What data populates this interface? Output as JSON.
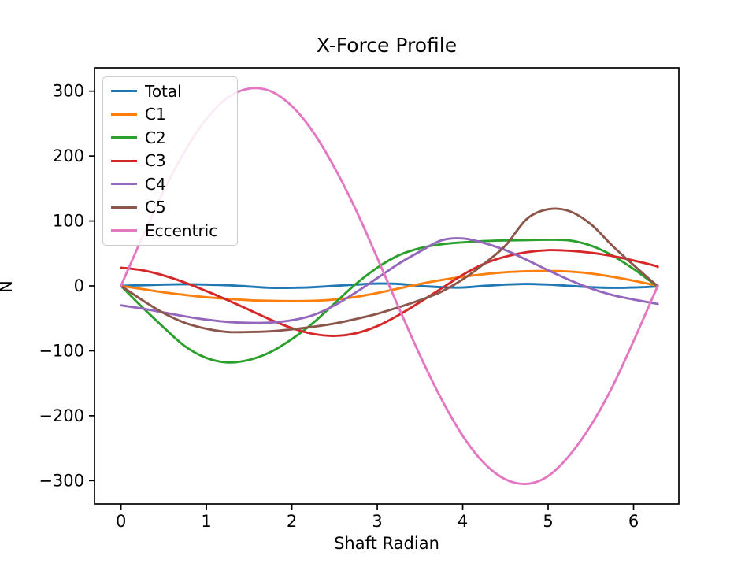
{
  "title": "X-Force Profile",
  "chart_data": {
    "type": "line",
    "title": "X-Force Profile",
    "xlabel": "Shaft Radian",
    "ylabel": "N",
    "xlim": [
      -0.31,
      6.53
    ],
    "ylim": [
      -336,
      336
    ],
    "xticks": [
      0,
      1,
      2,
      3,
      4,
      5,
      6
    ],
    "yticks": [
      -300,
      -200,
      -100,
      0,
      100,
      200,
      300
    ],
    "grid": false,
    "legend_position": "upper left",
    "legend_border_color": "#cccccc",
    "axis_color": "#000000",
    "x": [
      0,
      0.25,
      0.5,
      0.75,
      1,
      1.25,
      1.5,
      1.75,
      2,
      2.25,
      2.5,
      2.75,
      3,
      3.25,
      3.5,
      3.75,
      4,
      4.25,
      4.5,
      4.75,
      5,
      5.25,
      5.5,
      5.75,
      6,
      6.25,
      6.283
    ],
    "series": [
      {
        "name": "Total",
        "color": "#1f77b4",
        "values": [
          0,
          1,
          2,
          2.5,
          2,
          1,
          -1,
          -3,
          -3,
          -2,
          0,
          2,
          3.5,
          3,
          0,
          -2,
          -2.5,
          0,
          2,
          3,
          2,
          0,
          -2,
          -3,
          -2.5,
          -1,
          0
        ]
      },
      {
        "name": "C1",
        "color": "#ff7f0e",
        "values": [
          0,
          -5,
          -10,
          -14,
          -17.5,
          -20,
          -22,
          -23,
          -23.5,
          -23,
          -21,
          -17,
          -11,
          -4,
          3,
          9,
          14,
          18,
          21,
          22.5,
          23,
          22,
          19,
          14,
          8,
          1,
          0
        ]
      },
      {
        "name": "C2",
        "color": "#2ca02c",
        "values": [
          0,
          -33,
          -64,
          -93,
          -111,
          -118,
          -114,
          -102,
          -82,
          -57,
          -27,
          3,
          28,
          47,
          58,
          64,
          67,
          69,
          70,
          70.5,
          71,
          70,
          62,
          47,
          26,
          2,
          0
        ]
      },
      {
        "name": "C3",
        "color": "#d62728",
        "values": [
          28,
          24,
          16,
          5,
          -8,
          -22,
          -37,
          -52,
          -65,
          -74,
          -77,
          -73,
          -62,
          -45,
          -25,
          -4,
          17,
          34,
          45,
          52,
          55,
          54,
          51,
          46,
          39,
          31,
          29
        ]
      },
      {
        "name": "C4",
        "color": "#9467bd",
        "values": [
          -30,
          -35,
          -41,
          -47,
          -52,
          -55.5,
          -57,
          -56.5,
          -53,
          -45,
          -30,
          -10,
          12,
          34,
          53,
          70,
          73,
          66,
          55,
          40,
          24,
          9,
          -4,
          -14,
          -21,
          -27,
          -28
        ]
      },
      {
        "name": "C5",
        "color": "#8c564b",
        "values": [
          0,
          -22,
          -42,
          -57,
          -66,
          -71,
          -71,
          -70,
          -67,
          -63,
          -58,
          -51,
          -43,
          -33,
          -22,
          -9,
          10,
          34,
          62,
          103,
          118,
          115,
          95,
          62,
          32,
          3,
          0
        ]
      },
      {
        "name": "Eccentric",
        "color": "#e377c2",
        "values": [
          0,
          75,
          146,
          208,
          257,
          290,
          304,
          300,
          277,
          237,
          182,
          117,
          43,
          -33,
          -107,
          -174,
          -231,
          -273,
          -298,
          -305,
          -293,
          -261,
          -215,
          -156,
          -85,
          -10,
          0
        ]
      }
    ]
  }
}
